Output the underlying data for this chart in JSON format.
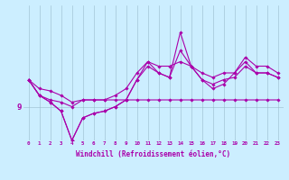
{
  "xlabel": "Windchill (Refroidissement éolien,°C)",
  "background_color": "#cceeff",
  "line_color": "#aa00aa",
  "grid_color": "#99bbcc",
  "x_hours": [
    0,
    1,
    2,
    3,
    4,
    5,
    6,
    7,
    8,
    9,
    10,
    11,
    12,
    13,
    14,
    15,
    16,
    17,
    18,
    19,
    20,
    21,
    22,
    23
  ],
  "ylim": [
    7.5,
    13.5
  ],
  "y_tick": 9,
  "line1_flat": [
    10.2,
    9.8,
    9.7,
    9.5,
    9.2,
    9.3,
    9.3,
    9.3,
    9.3,
    9.3,
    9.3,
    9.3,
    9.3,
    9.3,
    9.3,
    9.3,
    9.3,
    9.3,
    9.3,
    9.3,
    9.3,
    9.3,
    9.3,
    9.3
  ],
  "line2_main": [
    10.2,
    9.5,
    9.2,
    8.8,
    7.5,
    8.5,
    8.7,
    8.8,
    9.0,
    9.3,
    10.2,
    10.8,
    10.5,
    10.3,
    11.5,
    10.8,
    10.2,
    10.0,
    10.2,
    10.3,
    10.8,
    10.5,
    10.5,
    10.3
  ],
  "line3_spike": [
    10.2,
    9.5,
    9.2,
    8.8,
    7.5,
    8.5,
    8.7,
    8.8,
    9.0,
    9.3,
    10.2,
    11.0,
    10.5,
    10.3,
    12.3,
    10.8,
    10.2,
    9.8,
    10.0,
    10.5,
    11.0,
    10.5,
    10.5,
    10.3
  ],
  "line4_upper": [
    10.2,
    9.5,
    9.3,
    9.2,
    9.0,
    9.3,
    9.3,
    9.3,
    9.5,
    9.8,
    10.5,
    11.0,
    10.8,
    10.8,
    11.0,
    10.8,
    10.5,
    10.3,
    10.5,
    10.5,
    11.2,
    10.8,
    10.8,
    10.5
  ]
}
